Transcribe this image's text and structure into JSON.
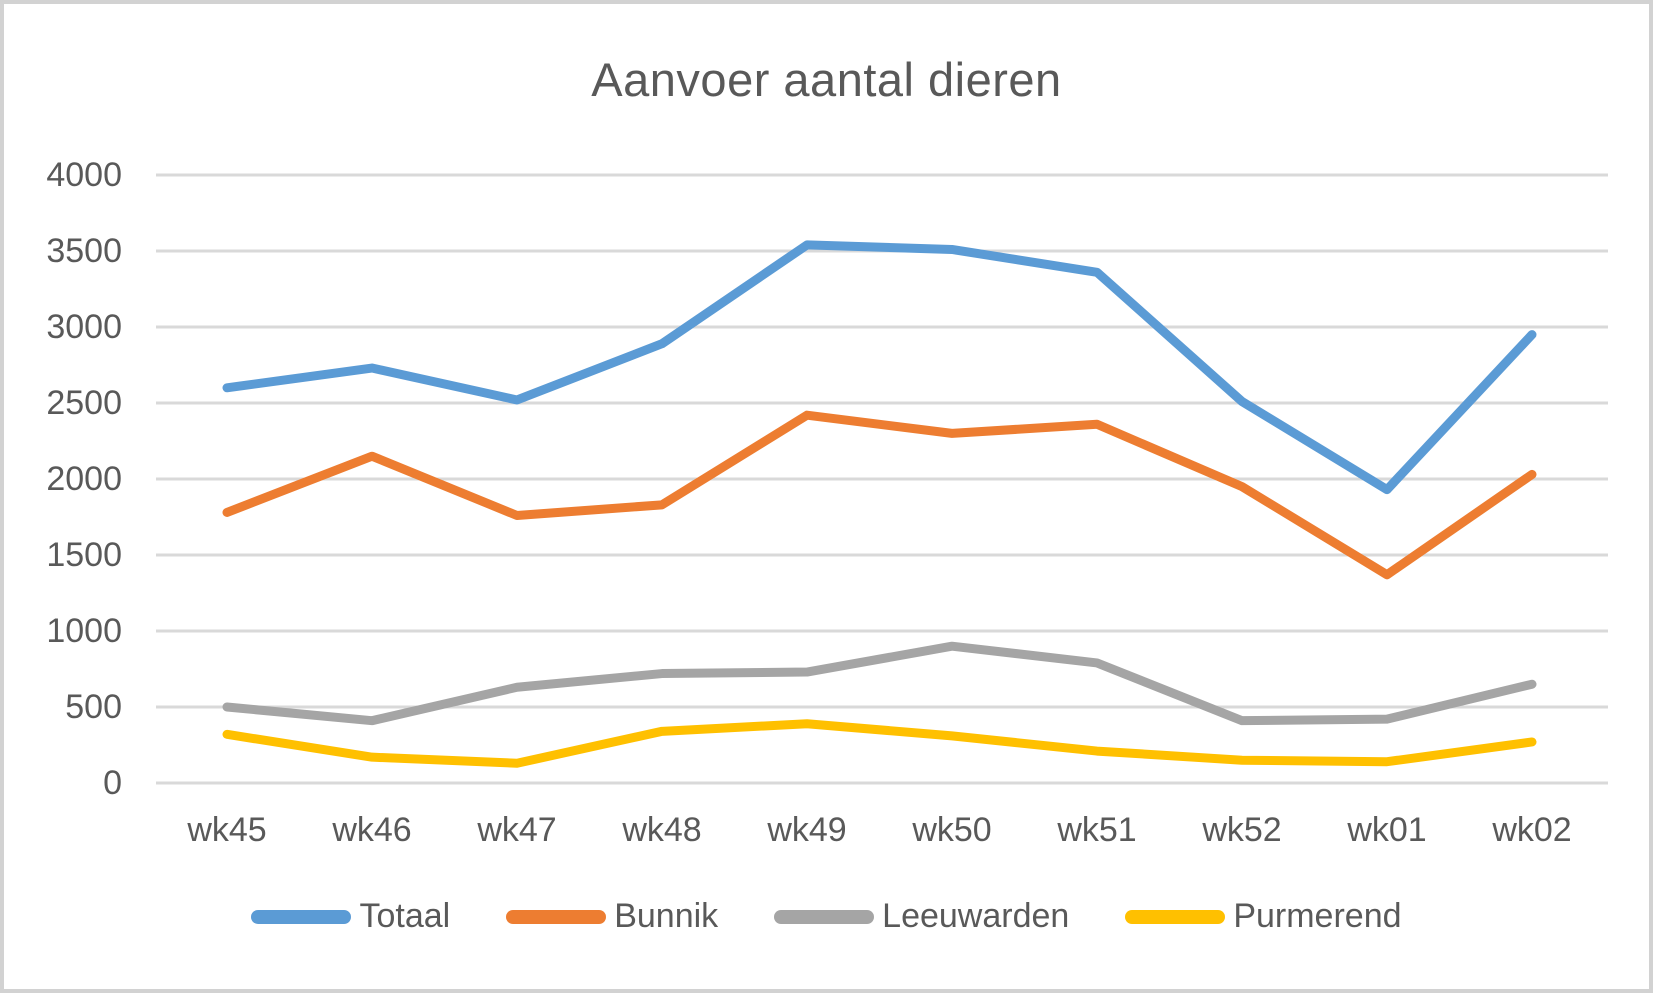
{
  "chart_data": {
    "type": "line",
    "title": "Aanvoer aantal dieren",
    "xlabel": "",
    "ylabel": "",
    "categories": [
      "wk45",
      "wk46",
      "wk47",
      "wk48",
      "wk49",
      "wk50",
      "wk51",
      "wk52",
      "wk01",
      "wk02"
    ],
    "series": [
      {
        "name": "Totaal",
        "color": "#5B9BD5",
        "values": [
          2600,
          2730,
          2520,
          2890,
          3540,
          3510,
          3360,
          2510,
          1930,
          2950
        ]
      },
      {
        "name": "Bunnik",
        "color": "#ED7D31",
        "values": [
          1780,
          2150,
          1760,
          1830,
          2420,
          2300,
          2360,
          1950,
          1370,
          2030
        ]
      },
      {
        "name": "Leeuwarden",
        "color": "#A5A5A5",
        "values": [
          500,
          410,
          630,
          720,
          730,
          900,
          790,
          410,
          420,
          650
        ]
      },
      {
        "name": "Purmerend",
        "color": "#FFC000",
        "values": [
          320,
          170,
          130,
          340,
          390,
          310,
          210,
          150,
          140,
          270
        ]
      }
    ],
    "ylim": [
      0,
      4000
    ],
    "yticks": [
      0,
      500,
      1000,
      1500,
      2000,
      2500,
      3000,
      3500,
      4000
    ],
    "grid": "horizontal",
    "legend_position": "bottom"
  },
  "styles": {
    "title_color": "#595959",
    "axis_label_color": "#595959",
    "gridline_color": "#D9D9D9",
    "background": "#FFFFFF",
    "border_color": "#D2D2D2"
  }
}
